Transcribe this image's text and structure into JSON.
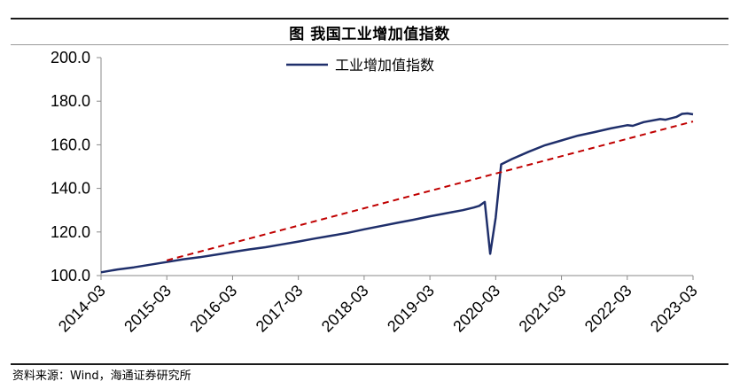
{
  "figure_title": "图  我国工业增加值指数",
  "source_note": "资料来源：Wind，海通证券研究所",
  "chart_data": {
    "type": "line",
    "title": "图  我国工业增加值指数",
    "xlabel": "",
    "ylabel": "",
    "ylim": [
      100,
      200
    ],
    "y_ticks": [
      "100.0",
      "120.0",
      "140.0",
      "160.0",
      "180.0",
      "200.0"
    ],
    "x_range": [
      "2014-03",
      "2023-03"
    ],
    "x_ticks": [
      "2014-03",
      "2015-03",
      "2016-03",
      "2017-03",
      "2018-03",
      "2019-03",
      "2020-03",
      "2021-03",
      "2022-03",
      "2023-03"
    ],
    "grid": false,
    "legend_position": "top-center",
    "series": [
      {
        "name": "工业增加值指数",
        "color": "#1f2f6b",
        "style": "solid",
        "points": [
          [
            "2014-03",
            101.5
          ],
          [
            "2014-06",
            102.8
          ],
          [
            "2014-09",
            103.8
          ],
          [
            "2014-12",
            105.0
          ],
          [
            "2015-03",
            106.2
          ],
          [
            "2015-06",
            107.5
          ],
          [
            "2015-09",
            108.4
          ],
          [
            "2015-12",
            109.6
          ],
          [
            "2016-03",
            110.8
          ],
          [
            "2016-06",
            112.0
          ],
          [
            "2016-09",
            113.0
          ],
          [
            "2016-12",
            114.3
          ],
          [
            "2017-03",
            115.6
          ],
          [
            "2017-06",
            117.0
          ],
          [
            "2017-09",
            118.3
          ],
          [
            "2017-12",
            119.6
          ],
          [
            "2018-03",
            121.2
          ],
          [
            "2018-06",
            122.7
          ],
          [
            "2018-09",
            124.2
          ],
          [
            "2018-12",
            125.6
          ],
          [
            "2019-03",
            127.2
          ],
          [
            "2019-06",
            128.6
          ],
          [
            "2019-09",
            130.0
          ],
          [
            "2019-10",
            130.6
          ],
          [
            "2019-11",
            131.2
          ],
          [
            "2019-12",
            132.0
          ],
          [
            "2020-01",
            133.8
          ],
          [
            "2020-02",
            110.0
          ],
          [
            "2020-03",
            126.5
          ],
          [
            "2020-04",
            151.0
          ],
          [
            "2020-06",
            153.5
          ],
          [
            "2020-09",
            156.8
          ],
          [
            "2020-12",
            159.8
          ],
          [
            "2021-03",
            162.0
          ],
          [
            "2021-06",
            164.2
          ],
          [
            "2021-09",
            165.8
          ],
          [
            "2021-12",
            167.5
          ],
          [
            "2022-03",
            169.0
          ],
          [
            "2022-04",
            168.7
          ],
          [
            "2022-06",
            170.4
          ],
          [
            "2022-09",
            171.8
          ],
          [
            "2022-10",
            171.5
          ],
          [
            "2022-12",
            172.8
          ],
          [
            "2023-01",
            174.2
          ],
          [
            "2023-02",
            174.4
          ],
          [
            "2023-03",
            174.0
          ]
        ]
      },
      {
        "name": "",
        "color": "#c00000",
        "style": "dashed",
        "points": [
          [
            "2015-03",
            107.0
          ],
          [
            "2023-03",
            170.7
          ]
        ]
      }
    ]
  }
}
